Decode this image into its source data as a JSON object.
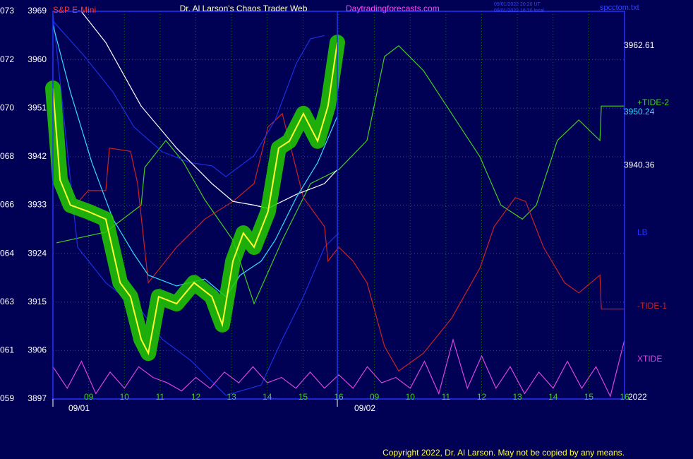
{
  "chart_data": {
    "type": "line",
    "title": "Dr. Al Larson's Chaos Trader Web",
    "symbol": "S&P E-Mini",
    "site": "Daytradingforecasts.com",
    "timestamps": [
      "09/01/2022 20:20 UT",
      "09/01/2022 16:20 local"
    ],
    "file": "spcctom.txt",
    "year": "2022",
    "dates": [
      "09/01",
      "09/02"
    ],
    "copyright": "Copyright 2022, Dr. Al Larson. May not be copied by any means.",
    "ylim": [
      3897,
      3969
    ],
    "yticks": [
      3969,
      3960,
      3951,
      3942,
      3933,
      3924,
      3915,
      3906,
      3897
    ],
    "yticks_alt": [
      "073",
      "072",
      "070",
      "068",
      "066",
      "064",
      "063",
      "061",
      "059"
    ],
    "xlim": [
      0,
      16
    ],
    "xticks": [
      {
        "value": 1,
        "label": "09"
      },
      {
        "value": 2,
        "label": "10"
      },
      {
        "value": 3,
        "label": "11"
      },
      {
        "value": 4,
        "label": "12"
      },
      {
        "value": 5,
        "label": "13"
      },
      {
        "value": 6,
        "label": "14"
      },
      {
        "value": 7,
        "label": "15"
      },
      {
        "value": 8,
        "label": "16"
      },
      {
        "value": 9,
        "label": "09"
      },
      {
        "value": 10,
        "label": "10"
      },
      {
        "value": 11,
        "label": "11"
      },
      {
        "value": 12,
        "label": "12"
      },
      {
        "value": 13,
        "label": "13"
      },
      {
        "value": 14,
        "label": "14"
      },
      {
        "value": 15,
        "label": "15"
      },
      {
        "value": 16,
        "label": "16"
      }
    ],
    "grid": true,
    "price_markers": {
      "values": [
        3962.61,
        3950.24,
        3940.36
      ],
      "colors": [
        "#ffffff",
        "#33ddff",
        "#ffffff"
      ]
    },
    "series": [
      {
        "name": "+TIDE-2",
        "color": "#44cc22",
        "x": [
          0.1,
          1.48,
          2.47,
          2.57,
          3.16,
          3.65,
          4.25,
          5.04,
          5.63,
          6.42,
          7.21,
          8,
          8.79,
          9.28,
          9.68,
          10.37,
          11.16,
          11.95,
          12.54,
          13.14,
          13.53,
          14.12,
          14.72,
          15.31,
          15.35,
          16
        ],
        "values": [
          3926,
          3928,
          3933,
          3940,
          3945,
          3941,
          3934,
          3926.5,
          3914.7,
          3926.5,
          3937,
          3939.6,
          3945,
          3960.6,
          3962.6,
          3958,
          3950,
          3942,
          3933,
          3930.4,
          3933,
          3945,
          3948.8,
          3945,
          3951.4,
          3951.4
        ]
      },
      {
        "name": "LB",
        "color": "#1a2fe0",
        "x": [
          0,
          0.69,
          1.48,
          2.47,
          3.06,
          3.85,
          4.84,
          5.83,
          6.42,
          7.01,
          7.6,
          8
        ],
        "values": [
          3968.5,
          3925.2,
          3918.6,
          3913.4,
          3908.1,
          3904.2,
          3897.7,
          3899.6,
          3908.1,
          3916,
          3925.2,
          3927.8
        ]
      },
      {
        "name": "-TIDE-1",
        "color": "#cc2222",
        "x": [
          0.49,
          0.99,
          1.48,
          1.58,
          2.17,
          2.37,
          2.67,
          3.46,
          4.25,
          5.04,
          5.63,
          6.02,
          6.42,
          7.01,
          7.6,
          7.7,
          8,
          8.4,
          8.79,
          9.28,
          9.68,
          10.37,
          11.16,
          11.95,
          12.35,
          12.94,
          13.23,
          13.73,
          14.32,
          14.72,
          15.31,
          15.35,
          16
        ],
        "values": [
          3932,
          3935.7,
          3935.7,
          3943.6,
          3943,
          3937,
          3918.6,
          3925.2,
          3930.4,
          3933.7,
          3937,
          3947.5,
          3950,
          3934.4,
          3929,
          3922.6,
          3925.2,
          3922.6,
          3918.6,
          3906.8,
          3902.2,
          3905.5,
          3912,
          3921.3,
          3929,
          3934.4,
          3933.7,
          3925.2,
          3918.6,
          3916.7,
          3920,
          3913.7,
          3913.7
        ]
      },
      {
        "name": "XTIDE",
        "color": "#dd44dd",
        "x": [
          0,
          0.4,
          0.8,
          1.2,
          1.6,
          2,
          2.4,
          2.8,
          3.2,
          3.6,
          4,
          4.4,
          4.8,
          5.2,
          5.6,
          6,
          6.4,
          6.8,
          7.2,
          7.6,
          8,
          8.4,
          8.8,
          9.2,
          9.6,
          10,
          10.4,
          10.8,
          11.2,
          11.6,
          12,
          12.4,
          12.8,
          13.2,
          13.6,
          14,
          14.4,
          14.8,
          15.2,
          15.6,
          16
        ],
        "values": [
          3903,
          3899,
          3904,
          3898,
          3902,
          3899,
          3903,
          3901,
          3900,
          3898.5,
          3901,
          3899,
          3902,
          3900,
          3903,
          3900,
          3901,
          3899,
          3902,
          3899,
          3901.5,
          3899,
          3903,
          3900,
          3901,
          3899,
          3904,
          3898,
          3908,
          3899,
          3905,
          3899,
          3903,
          3898,
          3902,
          3899,
          3904,
          3899,
          3903,
          3897.5,
          3908
        ]
      },
      {
        "color": "#1a2fe0",
        "x": [
          0,
          0.89,
          1.68,
          2.27,
          3.06,
          3.85,
          4.45,
          4.84,
          5.63,
          6.22,
          6.81,
          7.21,
          7.6
        ],
        "values": [
          3967.2,
          3960.6,
          3954,
          3947.5,
          3942.9,
          3940.9,
          3940.3,
          3938.3,
          3942.2,
          3948.8,
          3959.3,
          3963.9,
          3964.5
        ]
      },
      {
        "color": "#ffffff",
        "x": [
          0.79,
          1.48,
          2.47,
          3.46,
          4.45,
          5.04,
          5.63,
          6.02,
          6.81,
          7.6,
          7.96
        ],
        "values": [
          3969,
          3963.2,
          3951.4,
          3943.6,
          3937,
          3933.7,
          3933,
          3932.4,
          3935,
          3937,
          3939.6
        ]
      },
      {
        "color": "#33ddff",
        "x": [
          0,
          0.49,
          1.09,
          1.68,
          2.27,
          2.67,
          3.46,
          4.25,
          4.84,
          5.24,
          5.83,
          6.22,
          6.81,
          7.41,
          7.96
        ],
        "values": [
          3966.5,
          3954,
          3940.9,
          3930.4,
          3923.9,
          3920,
          3918,
          3919.3,
          3916,
          3920,
          3922.6,
          3926.5,
          3934.4,
          3940.9,
          3949.5
        ]
      },
      {
        "color": "#ffff33",
        "halo": "#22cc00",
        "x": [
          0,
          0.2,
          0.49,
          0.99,
          1.48,
          1.88,
          2.17,
          2.47,
          2.67,
          2.96,
          3.46,
          3.95,
          4.45,
          4.74,
          5.04,
          5.33,
          5.63,
          6.02,
          6.32,
          6.62,
          7.01,
          7.41,
          7.7,
          7.96
        ],
        "values": [
          3954.7,
          3937.7,
          3933,
          3931.8,
          3930.4,
          3918.6,
          3916,
          3908.1,
          3905.5,
          3916,
          3914.7,
          3918.6,
          3916,
          3910.8,
          3922.6,
          3927.8,
          3925.2,
          3931.8,
          3943.6,
          3944.9,
          3950,
          3944.9,
          3951.4,
          3963.2
        ]
      }
    ]
  }
}
